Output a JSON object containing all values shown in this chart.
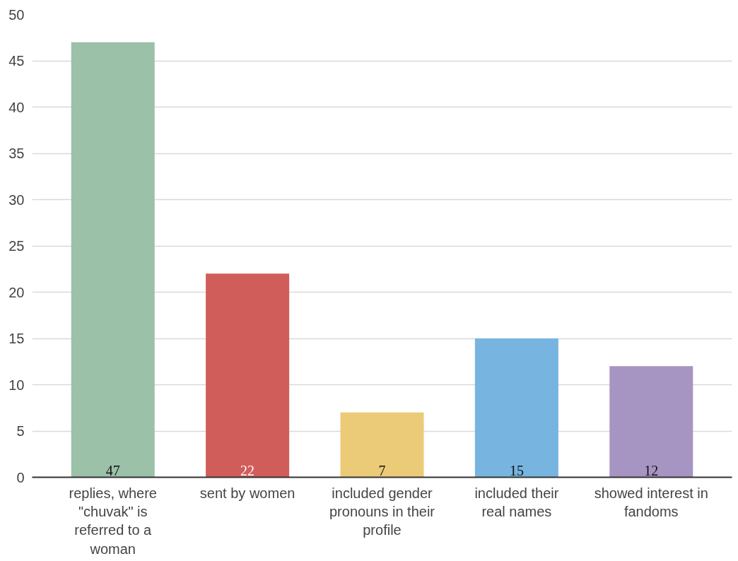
{
  "chart_data": {
    "type": "bar",
    "categories": [
      "replies, where \"chuvak\" is referred to a woman",
      "sent by women",
      "included gender pronouns in their profile",
      "included their real names",
      "showed interest in fandoms"
    ],
    "values": [
      47,
      22,
      7,
      15,
      12
    ],
    "colors": [
      "#9bc1a9",
      "#d15d5a",
      "#ebcb78",
      "#77b4e0",
      "#a694c2"
    ],
    "ylim": [
      0,
      50
    ],
    "yticks": [
      0,
      5,
      10,
      15,
      20,
      25,
      30,
      35,
      40,
      45,
      50
    ],
    "grid": "y",
    "data_labels": true
  }
}
